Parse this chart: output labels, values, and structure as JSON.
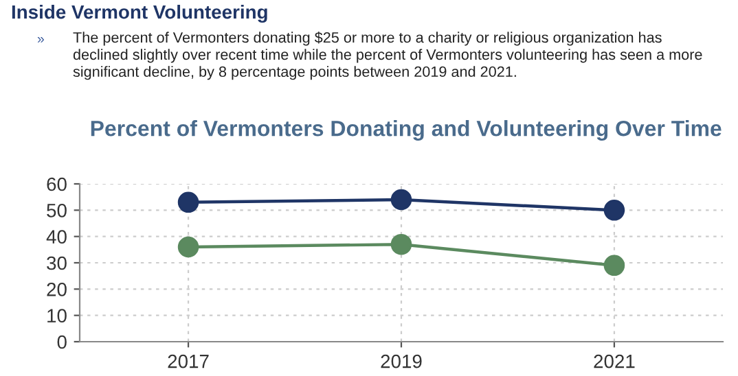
{
  "chart_data": {
    "type": "line",
    "title": "Percent of Vermonters Donating and Volunteering Over Time",
    "annotations": [
      "Inside Vermont Volunteering",
      "»",
      "The percent of Vermonters donating $25 or more to a charity or religious organization has\ndeclined slightly over recent time while the percent of Vermonters volunteering has seen a more\nsignificant decline, by 8 percentage points between 2019 and 2021."
    ],
    "categories": [
      "2017",
      "2019",
      "2021"
    ],
    "series": [
      {
        "color": "#1f3566",
        "values": [
          53,
          54,
          50
        ]
      },
      {
        "color": "#5b8a5f",
        "values": [
          36,
          37,
          29
        ]
      }
    ],
    "ylim": [
      0,
      60
    ],
    "yticks": [
      0,
      10,
      20,
      30,
      40,
      50,
      60
    ],
    "grid": true,
    "marker": "circle",
    "line_style": "solid",
    "legend": false
  }
}
